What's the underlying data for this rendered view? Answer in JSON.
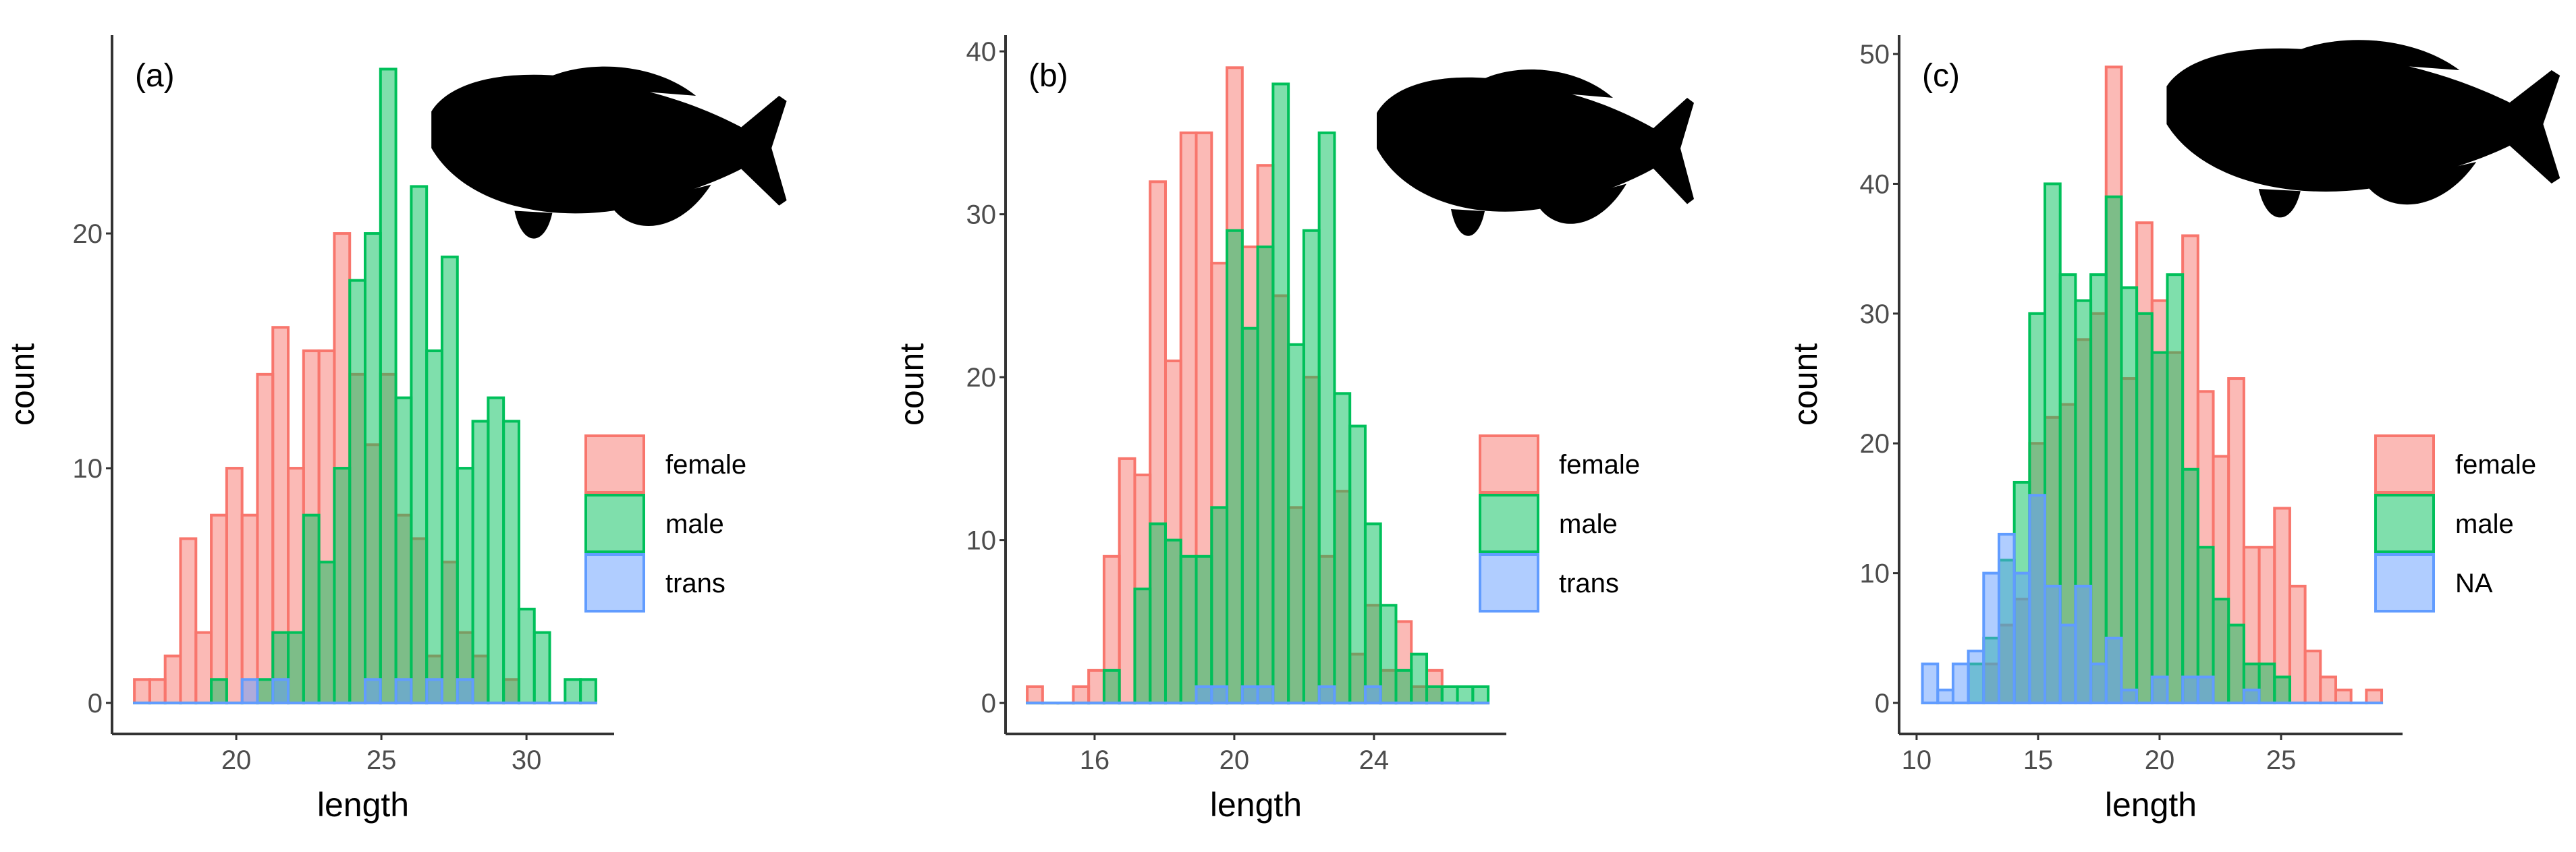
{
  "colors": {
    "female": "#F8766D",
    "male": "#00C05A",
    "trans": "#619CFF",
    "NA": "#619CFF"
  },
  "chart_data": [
    {
      "type": "histogram",
      "panel_label": "(a)",
      "xlabel": "length",
      "ylabel": "count",
      "xlim": [
        15.72,
        33.02
      ],
      "ylim": [
        -1.32,
        28.45
      ],
      "xticks": [
        20,
        25,
        30
      ],
      "yticks": [
        0,
        10,
        20
      ],
      "bin_start": 16.49,
      "bin_width": 0.53,
      "legend_position": "right",
      "series": [
        {
          "name": "female",
          "color_key": "female",
          "values": [
            1,
            1,
            2,
            7,
            3,
            8,
            10,
            8,
            14,
            16,
            10,
            15,
            15,
            20,
            14,
            11,
            14,
            8,
            7,
            2,
            6,
            3,
            2,
            0,
            1,
            0,
            0,
            0,
            0,
            0
          ]
        },
        {
          "name": "male",
          "color_key": "male",
          "values": [
            0,
            0,
            0,
            0,
            0,
            1,
            0,
            0,
            1,
            3,
            3,
            8,
            6,
            10,
            18,
            20,
            27,
            13,
            22,
            15,
            19,
            10,
            12,
            13,
            12,
            4,
            3,
            0,
            1,
            1
          ]
        },
        {
          "name": "trans",
          "color_key": "trans",
          "values": [
            0,
            0,
            0,
            0,
            0,
            0,
            0,
            1,
            0,
            1,
            0,
            0,
            0,
            0,
            0,
            1,
            0,
            1,
            0,
            1,
            0,
            1,
            0,
            0,
            0,
            0,
            0,
            0,
            0,
            0
          ]
        }
      ]
    },
    {
      "type": "histogram",
      "panel_label": "(b)",
      "xlabel": "length",
      "ylabel": "count",
      "xlim": [
        13.45,
        27.79
      ],
      "ylim": [
        -1.9,
        41.0
      ],
      "xticks": [
        16,
        20,
        24
      ],
      "yticks": [
        0,
        10,
        20,
        30,
        40
      ],
      "bin_start": 14.07,
      "bin_width": 0.44,
      "legend_position": "right",
      "series": [
        {
          "name": "female",
          "color_key": "female",
          "values": [
            1,
            0,
            0,
            1,
            2,
            9,
            15,
            14,
            32,
            21,
            35,
            35,
            27,
            39,
            28,
            33,
            25,
            12,
            20,
            9,
            13,
            3,
            6,
            2,
            5,
            1,
            2,
            0,
            0,
            0
          ]
        },
        {
          "name": "male",
          "color_key": "male",
          "values": [
            0,
            0,
            0,
            0,
            0,
            2,
            0,
            7,
            11,
            10,
            9,
            9,
            12,
            29,
            23,
            28,
            38,
            22,
            29,
            35,
            19,
            17,
            11,
            6,
            2,
            3,
            1,
            1,
            1,
            1
          ]
        },
        {
          "name": "trans",
          "color_key": "trans",
          "values": [
            0,
            0,
            0,
            0,
            0,
            0,
            0,
            0,
            0,
            0,
            0,
            1,
            1,
            0,
            1,
            1,
            0,
            0,
            0,
            1,
            0,
            0,
            1,
            0,
            0,
            0,
            0,
            0,
            0,
            0
          ]
        }
      ]
    },
    {
      "type": "histogram",
      "panel_label": "(c)",
      "xlabel": "length",
      "ylabel": "count",
      "xlim": [
        9.28,
        30.0
      ],
      "ylim": [
        -2.39,
        51.46
      ],
      "xticks": [
        10,
        15,
        20,
        25
      ],
      "yticks": [
        0,
        10,
        20,
        30,
        40,
        50
      ],
      "bin_start": 10.24,
      "bin_width": 0.63,
      "legend_position": "right",
      "series": [
        {
          "name": "female",
          "color_key": "female",
          "values": [
            0,
            0,
            0,
            0,
            3,
            6,
            8,
            20,
            22,
            23,
            28,
            30,
            49,
            25,
            37,
            31,
            27,
            36,
            24,
            19,
            25,
            12,
            12,
            15,
            9,
            4,
            2,
            1,
            0,
            1
          ]
        },
        {
          "name": "male",
          "color_key": "male",
          "values": [
            0,
            0,
            0,
            3,
            5,
            11,
            17,
            30,
            40,
            33,
            31,
            33,
            39,
            32,
            30,
            27,
            33,
            18,
            12,
            8,
            6,
            3,
            3,
            2,
            0,
            0,
            0,
            0,
            0,
            0
          ]
        },
        {
          "name": "NA",
          "color_key": "NA",
          "values": [
            3,
            1,
            3,
            4,
            10,
            13,
            10,
            16,
            9,
            6,
            9,
            3,
            5,
            1,
            0,
            2,
            0,
            2,
            2,
            0,
            0,
            1,
            0,
            0,
            0,
            0,
            0,
            0,
            0,
            0
          ]
        }
      ]
    }
  ]
}
